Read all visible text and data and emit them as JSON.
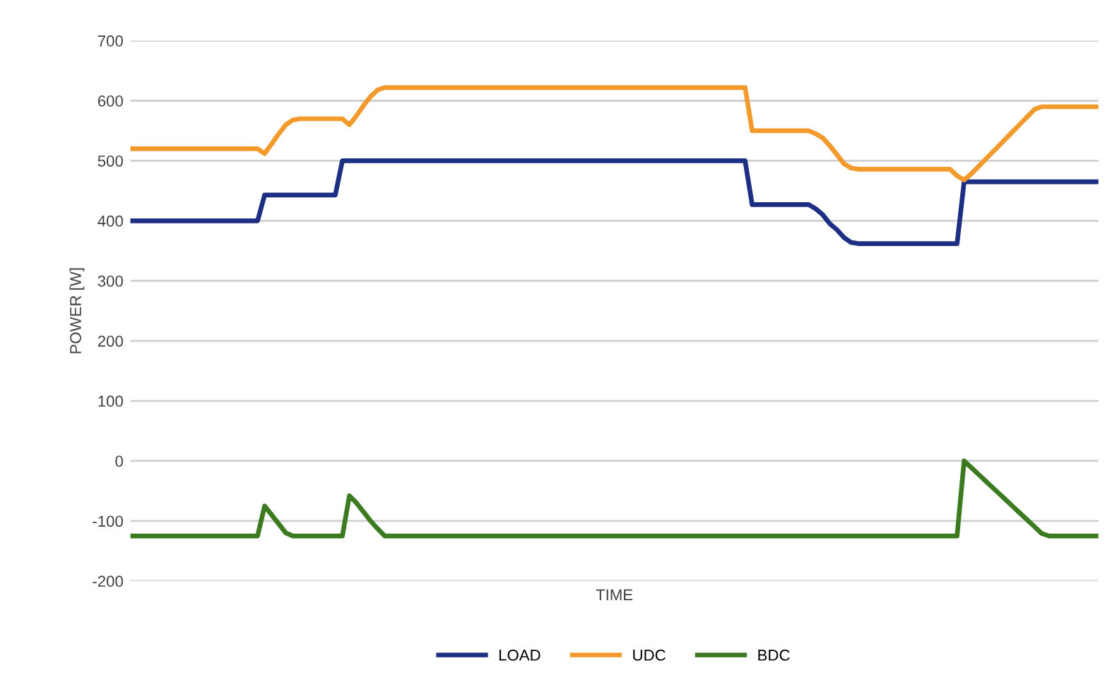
{
  "chart_data": {
    "type": "line",
    "xlabel": "TIME",
    "ylabel": "POWER [W]",
    "categories": [
      null,
      null,
      null,
      null,
      null,
      null,
      null,
      null,
      null,
      null,
      null,
      null,
      null,
      null,
      null,
      null,
      null,
      null,
      null,
      null,
      null,
      null,
      null,
      null,
      null,
      null,
      null,
      null,
      null,
      null,
      null,
      null,
      null,
      null,
      null,
      null,
      null,
      null,
      null,
      null,
      null,
      null,
      null,
      null,
      null,
      null,
      null,
      null,
      null,
      null,
      null,
      null,
      null,
      null,
      null,
      null,
      null,
      null,
      null,
      null,
      null,
      null,
      null,
      null,
      null,
      null,
      null,
      null,
      null,
      null,
      null,
      null,
      null,
      null,
      null,
      null,
      null,
      null,
      null,
      null,
      null,
      null,
      null,
      null,
      null,
      null,
      null,
      null,
      null,
      null,
      null,
      null,
      null,
      null,
      null,
      null,
      null,
      null,
      null,
      null,
      null,
      null,
      null,
      null,
      null,
      null,
      null,
      null,
      null,
      null,
      null,
      null,
      null,
      null,
      null,
      null,
      null,
      null,
      null,
      null,
      null,
      null,
      null,
      null,
      null,
      null,
      null,
      null,
      null,
      null,
      null,
      null,
      null,
      null,
      null,
      null,
      null,
      null
    ],
    "series": [
      {
        "name": "LOAD",
        "color": "#1c2f82",
        "values": [
          400,
          400,
          400,
          400,
          400,
          400,
          400,
          400,
          400,
          400,
          400,
          400,
          400,
          400,
          400,
          400,
          400,
          400,
          400,
          443,
          443,
          443,
          443,
          443,
          443,
          443,
          443,
          443,
          443,
          443,
          500,
          500,
          500,
          500,
          500,
          500,
          500,
          500,
          500,
          500,
          500,
          500,
          500,
          500,
          500,
          500,
          500,
          500,
          500,
          500,
          500,
          500,
          500,
          500,
          500,
          500,
          500,
          500,
          500,
          500,
          500,
          500,
          500,
          500,
          500,
          500,
          500,
          500,
          500,
          500,
          500,
          500,
          500,
          500,
          500,
          500,
          500,
          500,
          500,
          500,
          500,
          500,
          500,
          500,
          500,
          500,
          500,
          500,
          427,
          427,
          427,
          427,
          427,
          427,
          427,
          427,
          427,
          420,
          410,
          395,
          385,
          372,
          364,
          362,
          362,
          362,
          362,
          362,
          362,
          362,
          362,
          362,
          362,
          362,
          362,
          362,
          362,
          362,
          465,
          465,
          465,
          465,
          465,
          465,
          465,
          465,
          465,
          465,
          465,
          465,
          465,
          465,
          465,
          465,
          465,
          465,
          465,
          465
        ]
      },
      {
        "name": "UDC",
        "color": "#f39a2c",
        "values": [
          520,
          520,
          520,
          520,
          520,
          520,
          520,
          520,
          520,
          520,
          520,
          520,
          520,
          520,
          520,
          520,
          520,
          520,
          520,
          512,
          528,
          545,
          560,
          568,
          570,
          570,
          570,
          570,
          570,
          570,
          570,
          560,
          575,
          592,
          607,
          618,
          622,
          622,
          622,
          622,
          622,
          622,
          622,
          622,
          622,
          622,
          622,
          622,
          622,
          622,
          622,
          622,
          622,
          622,
          622,
          622,
          622,
          622,
          622,
          622,
          622,
          622,
          622,
          622,
          622,
          622,
          622,
          622,
          622,
          622,
          622,
          622,
          622,
          622,
          622,
          622,
          622,
          622,
          622,
          622,
          622,
          622,
          622,
          622,
          622,
          622,
          622,
          622,
          550,
          550,
          550,
          550,
          550,
          550,
          550,
          550,
          550,
          545,
          538,
          525,
          510,
          495,
          488,
          486,
          486,
          486,
          486,
          486,
          486,
          486,
          486,
          486,
          486,
          486,
          486,
          486,
          486,
          475,
          468,
          478,
          490,
          502,
          514,
          526,
          538,
          550,
          562,
          574,
          586,
          590,
          590,
          590,
          590,
          590,
          590,
          590,
          590,
          590
        ]
      },
      {
        "name": "BDC",
        "color": "#3b7a1f",
        "values": [
          -125,
          -125,
          -125,
          -125,
          -125,
          -125,
          -125,
          -125,
          -125,
          -125,
          -125,
          -125,
          -125,
          -125,
          -125,
          -125,
          -125,
          -125,
          -125,
          -75,
          -90,
          -105,
          -120,
          -125,
          -125,
          -125,
          -125,
          -125,
          -125,
          -125,
          -125,
          -58,
          -70,
          -85,
          -100,
          -113,
          -125,
          -125,
          -125,
          -125,
          -125,
          -125,
          -125,
          -125,
          -125,
          -125,
          -125,
          -125,
          -125,
          -125,
          -125,
          -125,
          -125,
          -125,
          -125,
          -125,
          -125,
          -125,
          -125,
          -125,
          -125,
          -125,
          -125,
          -125,
          -125,
          -125,
          -125,
          -125,
          -125,
          -125,
          -125,
          -125,
          -125,
          -125,
          -125,
          -125,
          -125,
          -125,
          -125,
          -125,
          -125,
          -125,
          -125,
          -125,
          -125,
          -125,
          -125,
          -125,
          -125,
          -125,
          -125,
          -125,
          -125,
          -125,
          -125,
          -125,
          -125,
          -125,
          -125,
          -125,
          -125,
          -125,
          -125,
          -125,
          -125,
          -125,
          -125,
          -125,
          -125,
          -125,
          -125,
          -125,
          -125,
          -125,
          -125,
          -125,
          -125,
          -125,
          0,
          -11,
          -22,
          -33,
          -44,
          -55,
          -66,
          -77,
          -88,
          -99,
          -110,
          -121,
          -125,
          -125,
          -125,
          -125,
          -125,
          -125,
          -125,
          -125
        ]
      }
    ],
    "ylim": [
      -200,
      700
    ],
    "yticks": [
      -200,
      -100,
      0,
      100,
      200,
      300,
      400,
      500,
      600,
      700
    ],
    "grid": "y",
    "legend": "bottom",
    "tick_labels": "y"
  }
}
